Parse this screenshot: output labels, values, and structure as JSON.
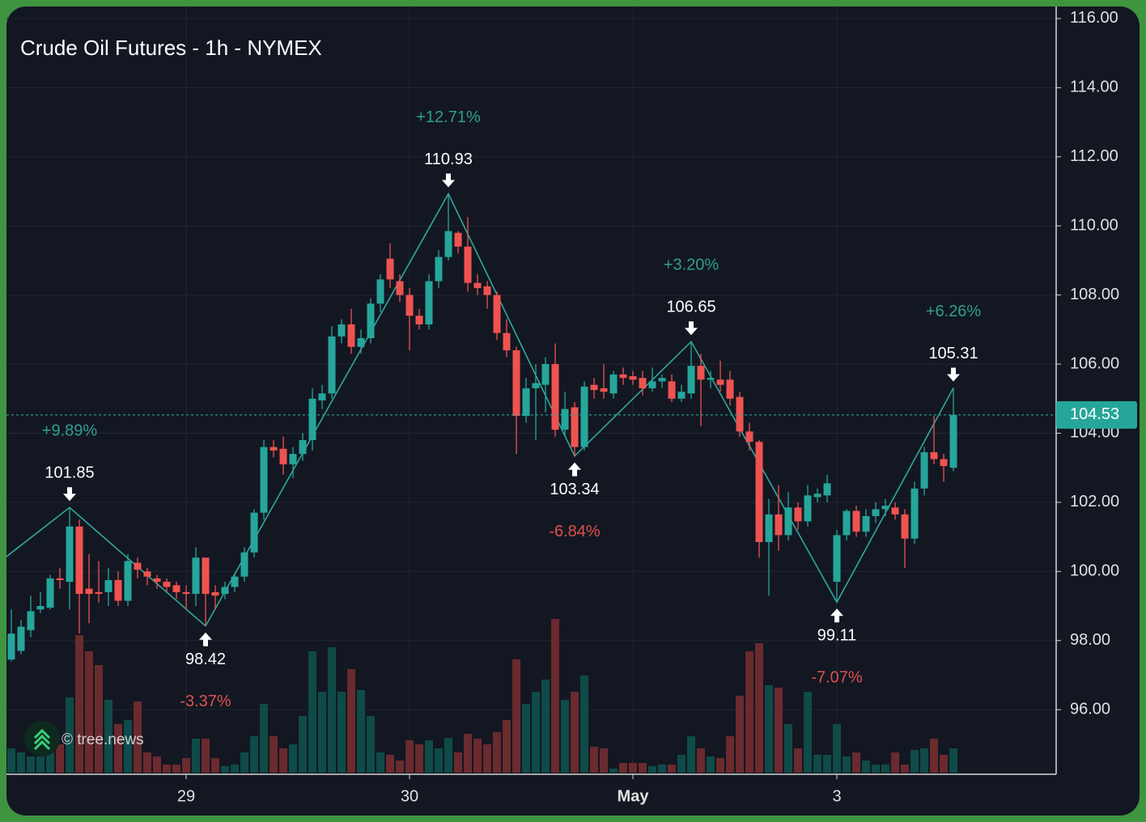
{
  "chart_data": {
    "type": "candlestick",
    "title": "Crude Oil Futures - 1h - NYMEX",
    "watermark": "© tree.news",
    "colors": {
      "up": "#26a69a",
      "down": "#ef5350",
      "volume_up": "#0f4b48",
      "volume_down": "#6a2a2e",
      "zigzag": "#2fa89b"
    },
    "grid": true,
    "xlim": [
      -0.5,
      107.58
    ],
    "xticks": [
      {
        "value": 18,
        "label": "29"
      },
      {
        "value": 41,
        "label": "30"
      },
      {
        "value": 64,
        "label": "May"
      },
      {
        "value": 85,
        "label": "3"
      }
    ],
    "ylim": [
      94.13,
      116.35
    ],
    "yticks": [
      {
        "value": 96,
        "label": "96.00"
      },
      {
        "value": 98,
        "label": "98.00"
      },
      {
        "value": 100,
        "label": "100.00"
      },
      {
        "value": 102,
        "label": "102.00"
      },
      {
        "value": 104,
        "label": "104.00"
      },
      {
        "value": 106,
        "label": "106.00"
      },
      {
        "value": 108,
        "label": "108.00"
      },
      {
        "value": 110,
        "label": "110.00"
      },
      {
        "value": 112,
        "label": "112.00"
      },
      {
        "value": 114,
        "label": "114.00"
      },
      {
        "value": 116,
        "label": "116.00"
      }
    ],
    "last_price": 104.53,
    "x": [
      0,
      1,
      2,
      3,
      4,
      5,
      6,
      7,
      8,
      9,
      10,
      11,
      12,
      13,
      14,
      15,
      16,
      17,
      18,
      19,
      20,
      21,
      22,
      23,
      24,
      25,
      26,
      27,
      28,
      29,
      30,
      31,
      32,
      33,
      34,
      35,
      36,
      37,
      38,
      39,
      40,
      41,
      42,
      43,
      44,
      45,
      46,
      47,
      48,
      49,
      50,
      51,
      52,
      53,
      54,
      55,
      56,
      57,
      58,
      59,
      60,
      61,
      62,
      63,
      64,
      65,
      66,
      67,
      68,
      69,
      70,
      71,
      72,
      73,
      74,
      75,
      76,
      77,
      78,
      79,
      80,
      81,
      82,
      83,
      84,
      85,
      86,
      87,
      88,
      89,
      90,
      91,
      92,
      93,
      94,
      95,
      96,
      97
    ],
    "open": [
      97.45,
      97.7,
      98.3,
      98.9,
      98.95,
      99.8,
      99.7,
      101.3,
      99.5,
      99.4,
      99.4,
      99.75,
      99.15,
      100.25,
      100.0,
      99.8,
      99.7,
      99.6,
      99.4,
      99.35,
      100.4,
      99.4,
      99.35,
      99.55,
      99.85,
      100.55,
      101.7,
      103.6,
      103.55,
      103.1,
      103.4,
      103.8,
      104.95,
      105.15,
      106.8,
      107.15,
      106.5,
      106.75,
      107.75,
      109.05,
      108.4,
      108.0,
      107.4,
      107.15,
      108.4,
      109.1,
      109.8,
      109.4,
      108.35,
      108.25,
      108.0,
      106.9,
      106.4,
      104.5,
      105.3,
      105.4,
      106.0,
      104.1,
      104.75,
      103.6,
      105.4,
      105.3,
      105.15,
      105.7,
      105.65,
      105.6,
      105.3,
      105.5,
      105.5,
      105.0,
      105.15,
      105.95,
      105.55,
      105.55,
      105.55,
      105.05,
      104.05,
      103.75,
      100.85,
      101.65,
      101.05,
      101.85,
      101.45,
      102.15,
      102.2,
      99.7,
      101.05,
      101.75,
      101.15,
      101.6,
      101.8,
      101.85,
      101.65,
      100.95,
      102.4,
      103.45,
      103.25,
      103.0
    ],
    "high": [
      98.9,
      98.6,
      99.3,
      99.4,
      99.9,
      100.1,
      101.85,
      101.5,
      100.5,
      100.3,
      100.1,
      100.0,
      100.5,
      100.4,
      100.1,
      99.9,
      99.8,
      99.7,
      99.6,
      100.7,
      100.4,
      99.6,
      99.7,
      99.95,
      100.7,
      101.8,
      103.8,
      103.8,
      103.9,
      103.6,
      104.0,
      105.3,
      105.4,
      107.1,
      107.3,
      107.6,
      107.0,
      107.9,
      108.6,
      109.5,
      108.6,
      108.2,
      107.6,
      108.6,
      109.3,
      110.93,
      109.85,
      110.25,
      108.6,
      108.4,
      108.1,
      107.3,
      106.5,
      105.6,
      106.0,
      106.2,
      106.6,
      105.2,
      104.9,
      105.5,
      105.6,
      106.0,
      105.8,
      105.9,
      105.8,
      105.8,
      105.9,
      105.7,
      105.7,
      105.4,
      106.65,
      106.3,
      105.8,
      106.1,
      105.8,
      105.2,
      104.3,
      103.8,
      102.1,
      102.5,
      102.3,
      102.0,
      102.5,
      102.4,
      102.8,
      101.2,
      101.8,
      101.9,
      101.8,
      102.0,
      102.1,
      102.0,
      101.8,
      102.6,
      103.6,
      104.5,
      103.4,
      105.31
    ],
    "low": [
      97.4,
      97.6,
      98.1,
      98.8,
      98.9,
      99.5,
      98.9,
      98.2,
      98.5,
      99.1,
      99.0,
      99.0,
      99.0,
      99.8,
      99.6,
      99.5,
      99.4,
      99.2,
      98.9,
      99.0,
      98.42,
      98.9,
      99.2,
      99.4,
      99.7,
      100.4,
      101.5,
      103.3,
      102.8,
      102.7,
      103.2,
      103.5,
      104.7,
      105.0,
      106.6,
      106.3,
      106.3,
      106.6,
      107.5,
      108.2,
      107.8,
      106.4,
      107.0,
      107.0,
      108.2,
      109.0,
      109.2,
      108.1,
      108.0,
      107.6,
      106.7,
      106.2,
      103.4,
      104.3,
      103.8,
      104.6,
      103.9,
      103.9,
      103.34,
      103.5,
      105.0,
      105.0,
      105.0,
      105.4,
      105.4,
      105.1,
      105.2,
      105.3,
      104.9,
      104.9,
      105.0,
      104.2,
      105.3,
      105.2,
      104.8,
      103.9,
      103.5,
      100.4,
      99.3,
      100.6,
      100.9,
      101.2,
      101.3,
      102.0,
      102.0,
      99.11,
      100.9,
      101.0,
      101.0,
      101.4,
      101.6,
      101.5,
      100.1,
      100.8,
      102.2,
      103.1,
      102.6,
      102.9
    ],
    "close": [
      98.2,
      98.4,
      98.85,
      99.0,
      99.8,
      99.75,
      101.3,
      99.35,
      99.35,
      99.35,
      99.75,
      99.15,
      100.3,
      100.05,
      99.85,
      99.7,
      99.55,
      99.4,
      99.35,
      100.4,
      99.35,
      99.3,
      99.55,
      99.85,
      100.55,
      101.7,
      103.6,
      103.5,
      103.1,
      103.4,
      103.8,
      105.0,
      105.15,
      106.8,
      107.15,
      106.5,
      106.75,
      107.75,
      108.45,
      108.45,
      108.0,
      107.4,
      107.15,
      108.4,
      109.1,
      109.85,
      109.4,
      108.35,
      108.2,
      108.0,
      106.9,
      106.4,
      104.5,
      105.3,
      105.45,
      106.0,
      104.1,
      104.7,
      103.6,
      105.35,
      105.25,
      105.2,
      105.7,
      105.6,
      105.55,
      105.3,
      105.5,
      105.6,
      105.0,
      105.2,
      105.95,
      105.55,
      105.6,
      105.4,
      105.0,
      104.05,
      103.75,
      100.85,
      101.65,
      101.05,
      101.85,
      101.45,
      102.2,
      102.25,
      102.55,
      101.05,
      101.75,
      101.15,
      101.6,
      101.8,
      101.9,
      101.65,
      100.95,
      102.4,
      103.45,
      103.25,
      103.05,
      104.53
    ],
    "volume": [
      30,
      25,
      20,
      20,
      25,
      35,
      93,
      170,
      150,
      133,
      90,
      60,
      65,
      88,
      25,
      20,
      10,
      10,
      18,
      42,
      42,
      18,
      8,
      10,
      25,
      45,
      85,
      45,
      30,
      35,
      70,
      150,
      100,
      155,
      100,
      128,
      102,
      70,
      25,
      22,
      15,
      40,
      35,
      40,
      30,
      43,
      25,
      48,
      42,
      35,
      50,
      65,
      140,
      85,
      100,
      115,
      190,
      90,
      100,
      120,
      32,
      30,
      5,
      12,
      12,
      12,
      8,
      10,
      10,
      22,
      45,
      30,
      20,
      18,
      45,
      95,
      150,
      160,
      108,
      105,
      60,
      30,
      100,
      22,
      22,
      60,
      20,
      25,
      15,
      10,
      10,
      25,
      10,
      28,
      30,
      42,
      22,
      30
    ],
    "zigzag_start": {
      "x": -0.5,
      "price": 100.43
    },
    "pivots": [
      {
        "x": 6,
        "price": 101.85,
        "change": "+9.89%",
        "kind": "high"
      },
      {
        "x": 20,
        "price": 98.42,
        "change": "-3.37%",
        "kind": "low"
      },
      {
        "x": 45,
        "price": 110.93,
        "change": "+12.71%",
        "kind": "high"
      },
      {
        "x": 58,
        "price": 103.34,
        "change": "-6.84%",
        "kind": "low"
      },
      {
        "x": 70,
        "price": 106.65,
        "change": "+3.20%",
        "kind": "high"
      },
      {
        "x": 85,
        "price": 99.11,
        "change": "-7.07%",
        "kind": "low"
      },
      {
        "x": 97,
        "price": 105.31,
        "change": "+6.26%",
        "kind": "high"
      }
    ]
  }
}
